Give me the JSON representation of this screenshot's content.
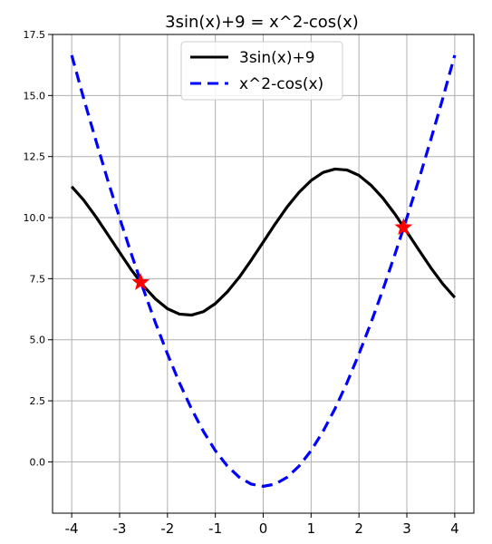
{
  "chart_data": {
    "type": "line",
    "title": "3sin(x)+9 = x^2-cos(x)",
    "xlabel": "",
    "ylabel": "",
    "xlim": [
      -4.4,
      4.4
    ],
    "ylim": [
      -2.1,
      17.5
    ],
    "grid": true,
    "legend_position": "top-center",
    "x_ticks": [
      {
        "value": -4,
        "label": "-4"
      },
      {
        "value": -3,
        "label": "-3"
      },
      {
        "value": -2,
        "label": "-2"
      },
      {
        "value": -1,
        "label": "-1"
      },
      {
        "value": 0,
        "label": "0"
      },
      {
        "value": 1,
        "label": "1"
      },
      {
        "value": 2,
        "label": "2"
      },
      {
        "value": 3,
        "label": "3"
      },
      {
        "value": 4,
        "label": "4"
      }
    ],
    "y_ticks": [
      {
        "value": 0.0,
        "label": "0.0"
      },
      {
        "value": 2.5,
        "label": "2.5"
      },
      {
        "value": 5.0,
        "label": "5.0"
      },
      {
        "value": 7.5,
        "label": "7.5"
      },
      {
        "value": 10.0,
        "label": "10.0"
      },
      {
        "value": 12.5,
        "label": "12.5"
      },
      {
        "value": 15.0,
        "label": "15.0"
      },
      {
        "value": 17.5,
        "label": "17.5"
      }
    ],
    "series": [
      {
        "name": "3sin(x)+9",
        "color": "#000000",
        "style": "solid",
        "x": [
          -4.0,
          -3.75,
          -3.5,
          -3.25,
          -3.0,
          -2.75,
          -2.5,
          -2.25,
          -2.0,
          -1.75,
          -1.5,
          -1.25,
          -1.0,
          -0.75,
          -0.5,
          -0.25,
          0.0,
          0.25,
          0.5,
          0.75,
          1.0,
          1.25,
          1.5,
          1.75,
          2.0,
          2.25,
          2.5,
          2.75,
          3.0,
          3.25,
          3.5,
          3.75,
          4.0
        ],
        "y": [
          11.27,
          10.72,
          10.05,
          9.32,
          8.58,
          7.85,
          7.2,
          6.67,
          6.27,
          6.05,
          6.01,
          6.15,
          6.48,
          6.96,
          7.56,
          8.26,
          9.0,
          9.74,
          10.44,
          11.04,
          11.52,
          11.85,
          11.99,
          11.95,
          11.73,
          11.33,
          10.8,
          10.15,
          9.42,
          8.68,
          7.95,
          7.29,
          6.73
        ]
      },
      {
        "name": "x^2-cos(x)",
        "color": "#0000ff",
        "style": "dashed",
        "x": [
          -4.0,
          -3.75,
          -3.5,
          -3.25,
          -3.0,
          -2.75,
          -2.5,
          -2.25,
          -2.0,
          -1.75,
          -1.5,
          -1.25,
          -1.0,
          -0.75,
          -0.5,
          -0.25,
          0.0,
          0.25,
          0.5,
          0.75,
          1.0,
          1.25,
          1.5,
          1.75,
          2.0,
          2.25,
          2.5,
          2.75,
          3.0,
          3.25,
          3.5,
          3.75,
          4.0
        ],
        "y": [
          16.65,
          14.88,
          13.19,
          11.55,
          9.99,
          8.49,
          7.05,
          5.69,
          4.42,
          3.24,
          2.18,
          1.25,
          0.46,
          -0.17,
          -0.63,
          -0.91,
          -1.0,
          -0.91,
          -0.63,
          -0.17,
          0.46,
          1.25,
          2.18,
          3.24,
          4.42,
          5.69,
          7.05,
          8.49,
          9.99,
          11.55,
          13.19,
          14.88,
          16.65
        ]
      }
    ],
    "markers": [
      {
        "x": -2.56,
        "y": 7.35,
        "color": "#ff0000",
        "shape": "star"
      },
      {
        "x": 2.93,
        "y": 9.6,
        "color": "#ff0000",
        "shape": "star"
      }
    ]
  }
}
